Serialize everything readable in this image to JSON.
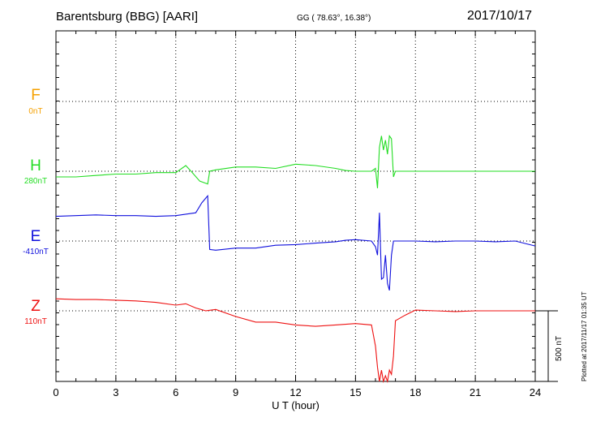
{
  "header": {
    "station": "Barentsburg (BBG)  [AARI]",
    "coords": "GG ( 78.63°,  16.38°)",
    "date": "2017/10/17"
  },
  "plotted_note": "Plotted at 2017/11/17 01:35 UT",
  "channels": [
    {
      "letter": "F",
      "baseline": "0nT",
      "color": "#f5a000"
    },
    {
      "letter": "H",
      "baseline": "280nT",
      "color": "#22dd22"
    },
    {
      "letter": "E",
      "baseline": "-410nT",
      "color": "#1010dd"
    },
    {
      "letter": "Z",
      "baseline": "110nT",
      "color": "#ee1111"
    }
  ],
  "chart_data": {
    "type": "line",
    "xlabel": "U T (hour)",
    "xlim": [
      0,
      24
    ],
    "x_ticks": [
      0,
      3,
      6,
      9,
      12,
      15,
      18,
      21,
      24
    ],
    "scale_bar_label": "500 nT",
    "scale_bar_value": 500,
    "grid": true,
    "series": [
      {
        "name": "H",
        "x": [
          0,
          1,
          2,
          3,
          4,
          5,
          6,
          6.5,
          6.8,
          7.2,
          7.6,
          7.7,
          8,
          9,
          10,
          11,
          12,
          13,
          14,
          14.5,
          15,
          15.8,
          16.0,
          16.1,
          16.2,
          16.3,
          16.4,
          16.5,
          16.6,
          16.7,
          16.8,
          16.9,
          17,
          18,
          19,
          20,
          21,
          22,
          23,
          24
        ],
        "y": [
          -40,
          -40,
          -30,
          -20,
          -20,
          -10,
          -10,
          40,
          -5,
          -70,
          -90,
          0,
          10,
          30,
          30,
          20,
          50,
          40,
          20,
          5,
          0,
          0,
          20,
          -120,
          170,
          250,
          150,
          220,
          120,
          250,
          230,
          -40,
          0,
          0,
          0,
          0,
          0,
          0,
          0,
          0
        ]
      },
      {
        "name": "E",
        "x": [
          0,
          1,
          2,
          3,
          4,
          5,
          6,
          6.5,
          7,
          7.3,
          7.6,
          7.7,
          8,
          9,
          10,
          11,
          12,
          13,
          14,
          14.5,
          15,
          15.8,
          16.0,
          16.1,
          16.2,
          16.3,
          16.4,
          16.5,
          16.6,
          16.7,
          16.8,
          16.9,
          17,
          18,
          19,
          20,
          21,
          22,
          23,
          24
        ],
        "y": [
          175,
          180,
          185,
          180,
          180,
          175,
          180,
          190,
          200,
          270,
          320,
          -60,
          -65,
          -50,
          -50,
          -30,
          -25,
          -15,
          -5,
          5,
          10,
          0,
          -40,
          -100,
          200,
          -270,
          -260,
          -100,
          -300,
          -350,
          -100,
          0,
          0,
          0,
          -5,
          0,
          0,
          -5,
          0,
          -35
        ]
      },
      {
        "name": "Z",
        "x": [
          0,
          1,
          2,
          3,
          4,
          5,
          6,
          6.5,
          7,
          7.5,
          8,
          9,
          10,
          11,
          12,
          13,
          14,
          15,
          15.8,
          16.0,
          16.1,
          16.2,
          16.3,
          16.4,
          16.5,
          16.6,
          16.7,
          16.8,
          16.9,
          17,
          17.5,
          18,
          19,
          20,
          21,
          22,
          23,
          24
        ],
        "y": [
          85,
          80,
          80,
          75,
          70,
          60,
          40,
          50,
          20,
          0,
          10,
          -40,
          -80,
          -80,
          -100,
          -110,
          -100,
          -90,
          -100,
          -250,
          -400,
          -500,
          -420,
          -500,
          -460,
          -500,
          -420,
          -450,
          -320,
          -70,
          -30,
          5,
          0,
          -5,
          0,
          0,
          0,
          0
        ]
      }
    ]
  }
}
